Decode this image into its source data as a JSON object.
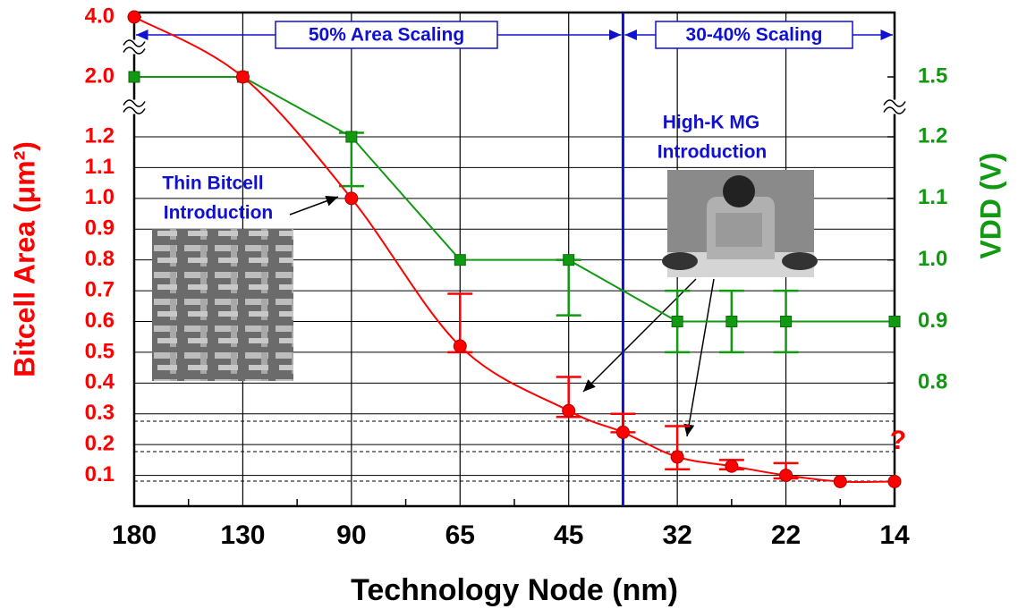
{
  "chart_data": [
    {
      "type": "line",
      "x_label": "Technology Node (nm)",
      "y_label": "Bitcell Area (μm²)",
      "categories": [
        "180",
        "130",
        "90",
        "65",
        "45",
        null,
        "32",
        null,
        "22",
        null,
        "14"
      ],
      "values": [
        4.0,
        2.0,
        1.0,
        0.52,
        0.31,
        0.24,
        0.16,
        0.13,
        0.1,
        0.08,
        0.08
      ],
      "error_low": [
        null,
        null,
        null,
        0.5,
        0.29,
        0.24,
        0.12,
        0.12,
        0.09,
        null,
        null
      ],
      "error_high": [
        null,
        null,
        null,
        0.69,
        0.42,
        0.3,
        0.26,
        0.15,
        0.14,
        null,
        null
      ],
      "color": "#ff0000",
      "ylim": [
        0,
        4.0
      ],
      "yticks": [
        0.1,
        0.2,
        0.3,
        0.4,
        0.5,
        0.6,
        0.7,
        0.8,
        0.9,
        {
          "value": 1,
          "label": "1.0"
        },
        1.1,
        1.2,
        {
          "value": 2,
          "label": "2.0"
        },
        {
          "value": 4,
          "label": "4.0"
        }
      ],
      "grid": true,
      "annotations": [
        "50% Area Scaling",
        "30-40% Scaling",
        "Thin Bitcell",
        "Introduction",
        "High-K MG",
        "Introduction",
        "?"
      ]
    },
    {
      "type": "line",
      "y2_label": "VDD (V)",
      "categories": [
        "180",
        "130",
        "90",
        "65",
        "45",
        "32",
        null,
        "22",
        "14"
      ],
      "values": [
        1.5,
        1.5,
        1.2,
        1.0,
        1.0,
        0.9,
        0.9,
        0.9,
        0.9
      ],
      "error_low": [
        null,
        null,
        1.12,
        null,
        0.91,
        0.85,
        0.85,
        0.85,
        null
      ],
      "error_high": [
        null,
        null,
        1.22,
        null,
        1.0,
        0.95,
        0.95,
        0.95,
        null
      ],
      "color": "#119911",
      "axis": "y2",
      "y2lim": [
        0.6,
        1.5
      ],
      "y2ticks": [
        0.8,
        0.9,
        {
          "value": 1,
          "label": "1.0"
        },
        1.1,
        1.2,
        1.5
      ]
    }
  ]
}
